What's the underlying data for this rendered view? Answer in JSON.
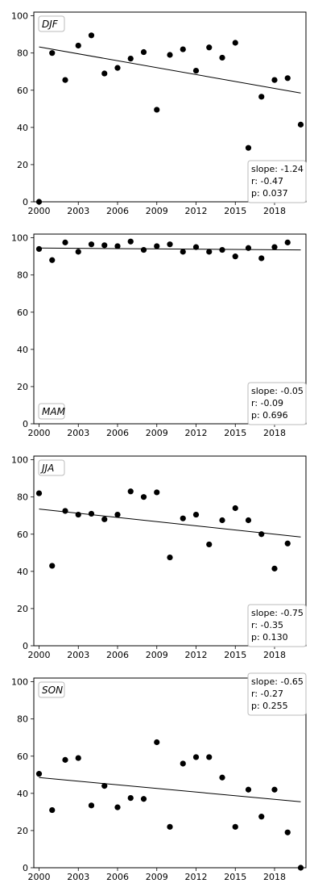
{
  "chart_data": [
    {
      "type": "scatter",
      "label": "DJF",
      "x": [
        2000,
        2001,
        2002,
        2003,
        2004,
        2005,
        2006,
        2007,
        2008,
        2009,
        2010,
        2011,
        2012,
        2013,
        2014,
        2015,
        2016,
        2017,
        2018,
        2019,
        2020
      ],
      "y": [
        0,
        80,
        65.5,
        84,
        89.5,
        69,
        72,
        77,
        80.5,
        49.5,
        79,
        82,
        70.5,
        83,
        77.5,
        85.5,
        29,
        56.5,
        65.5,
        66.5,
        41.5
      ],
      "trend": {
        "x": [
          2000,
          2020
        ],
        "y": [
          83.3,
          58.5
        ]
      },
      "stats": [
        "slope: -1.24",
        "r: -0.47",
        "p: 0.037"
      ],
      "label_position": "top-left",
      "stats_position": "bottom-right",
      "xticks": [
        "2000",
        "2003",
        "2006",
        "2009",
        "2012",
        "2015",
        "2018"
      ],
      "yticks": [
        "0",
        "20",
        "40",
        "60",
        "80",
        "100"
      ],
      "xlim": [
        1999.6,
        2020.4
      ],
      "ylim": [
        0,
        102
      ],
      "grid": false
    },
    {
      "type": "scatter",
      "label": "MAM",
      "x": [
        2000,
        2001,
        2002,
        2003,
        2004,
        2005,
        2006,
        2007,
        2008,
        2009,
        2010,
        2011,
        2012,
        2013,
        2014,
        2015,
        2016,
        2017,
        2018,
        2019
      ],
      "y": [
        94,
        88,
        97.5,
        92.5,
        96.5,
        96,
        95.5,
        98,
        93.5,
        95.5,
        96.5,
        92.5,
        95,
        92.5,
        93.5,
        90,
        94.5,
        89,
        95,
        97.5
      ],
      "trend": {
        "x": [
          2000,
          2020
        ],
        "y": [
          94.5,
          93.5
        ]
      },
      "stats": [
        "slope: -0.05",
        "r: -0.09",
        "p: 0.696"
      ],
      "label_position": "bottom-left",
      "stats_position": "bottom-right",
      "xticks": [
        "2000",
        "2003",
        "2006",
        "2009",
        "2012",
        "2015",
        "2018"
      ],
      "yticks": [
        "0",
        "20",
        "40",
        "60",
        "80",
        "100"
      ],
      "xlim": [
        1999.6,
        2020.4
      ],
      "ylim": [
        0,
        102
      ],
      "grid": false
    },
    {
      "type": "scatter",
      "label": "JJA",
      "x": [
        2000,
        2001,
        2002,
        2003,
        2004,
        2005,
        2006,
        2007,
        2008,
        2009,
        2010,
        2011,
        2012,
        2013,
        2014,
        2015,
        2016,
        2017,
        2018,
        2019
      ],
      "y": [
        82,
        43,
        72.5,
        70.5,
        71,
        68,
        70.5,
        83,
        80,
        82.5,
        47.5,
        68.5,
        70.5,
        54.5,
        67.5,
        74,
        67.5,
        60,
        41.5,
        55
      ],
      "trend": {
        "x": [
          2000,
          2020
        ],
        "y": [
          73.5,
          58.5
        ]
      },
      "stats": [
        "slope: -0.75",
        "r: -0.35",
        "p: 0.130"
      ],
      "label_position": "top-left",
      "stats_position": "bottom-right",
      "xticks": [
        "2000",
        "2003",
        "2006",
        "2009",
        "2012",
        "2015",
        "2018"
      ],
      "yticks": [
        "0",
        "20",
        "40",
        "60",
        "80",
        "100"
      ],
      "xlim": [
        1999.6,
        2020.4
      ],
      "ylim": [
        0,
        102
      ],
      "grid": false
    },
    {
      "type": "scatter",
      "label": "SON",
      "x": [
        2000,
        2001,
        2002,
        2003,
        2004,
        2005,
        2006,
        2007,
        2008,
        2009,
        2010,
        2011,
        2012,
        2013,
        2014,
        2015,
        2016,
        2017,
        2018,
        2019,
        2020
      ],
      "y": [
        50.5,
        31,
        58,
        59,
        33.5,
        44,
        32.5,
        37.5,
        37,
        67.5,
        22,
        56,
        59.5,
        59.5,
        48.5,
        22,
        42,
        27.5,
        42,
        19,
        0
      ],
      "trend": {
        "x": [
          2000,
          2020
        ],
        "y": [
          48.5,
          35.5
        ]
      },
      "stats": [
        "slope: -0.65",
        "r: -0.27",
        "p: 0.255"
      ],
      "label_position": "top-left",
      "stats_position": "top-right",
      "xticks": [
        "2000",
        "2003",
        "2006",
        "2009",
        "2012",
        "2015",
        "2018"
      ],
      "yticks": [
        "0",
        "20",
        "40",
        "60",
        "80",
        "100"
      ],
      "xlim": [
        1999.6,
        2020.4
      ],
      "ylim": [
        0,
        102
      ],
      "grid": false
    }
  ]
}
